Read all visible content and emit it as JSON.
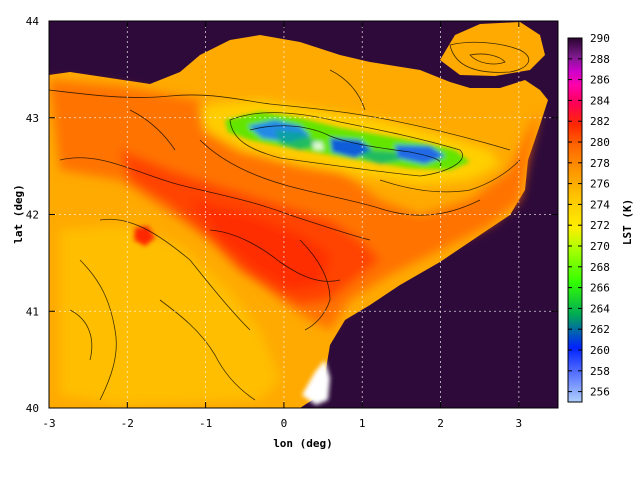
{
  "chart_data": {
    "type": "heatmap",
    "title": "",
    "xlabel": "lon (deg)",
    "ylabel": "lat (deg)",
    "colorbar_label": "LST (K)",
    "xlim": [
      -3,
      3.5
    ],
    "ylim": [
      40,
      44
    ],
    "x_ticks": [
      -3,
      -2,
      -1,
      0,
      1,
      2,
      3
    ],
    "y_ticks": [
      40,
      41,
      42,
      43,
      44
    ],
    "colorbar_range": [
      255,
      290
    ],
    "colorbar_ticks": [
      256,
      258,
      260,
      262,
      264,
      266,
      268,
      270,
      272,
      274,
      276,
      278,
      280,
      282,
      284,
      286,
      288,
      290
    ],
    "grid": true,
    "contours": true,
    "colors": {
      "sea": "#2e0a3a",
      "lowland": "#ff4400",
      "midland": "#ffaa00",
      "highland": "#ffd500",
      "mountain_cold": "#33ff33",
      "peak_cold": "#2255ff"
    }
  }
}
